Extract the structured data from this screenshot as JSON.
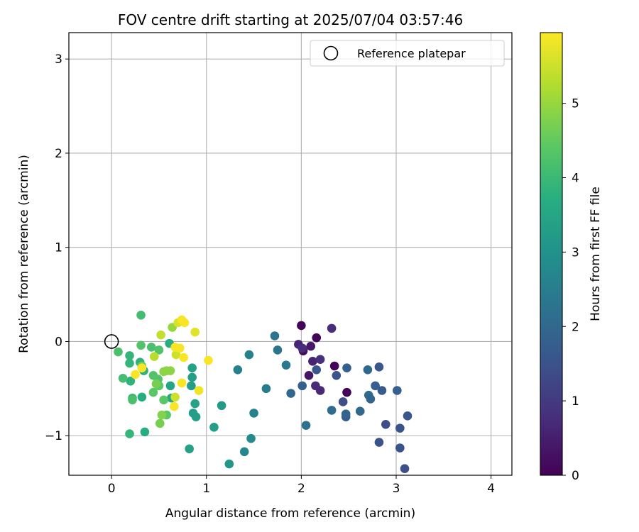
{
  "chart_data": {
    "type": "scatter",
    "title": "FOV centre drift starting at 2025/07/04 03:57:46",
    "xlabel": "Angular distance from reference (arcmin)",
    "ylabel": "Rotation from reference (arcmin)",
    "xlim": [
      -0.45,
      4.22
    ],
    "ylim": [
      -1.42,
      3.28
    ],
    "xticks": [
      0,
      1,
      2,
      3,
      4
    ],
    "yticks": [
      -1,
      0,
      1,
      2,
      3
    ],
    "grid": true,
    "legend": {
      "placement": "top-right",
      "entries": [
        "Reference platepar"
      ]
    },
    "reference_point": {
      "name": "Reference platepar",
      "x": 0,
      "y": 0
    },
    "colorbar": {
      "label": "Hours from first FF file",
      "colormap": "viridis",
      "range": [
        0,
        5.95
      ],
      "ticks": [
        0,
        1,
        2,
        3,
        4,
        5
      ]
    },
    "points": [
      {
        "x": 2.0,
        "y": 0.17,
        "c": 0.05
      },
      {
        "x": 2.16,
        "y": 0.04,
        "c": 0.05
      },
      {
        "x": 2.48,
        "y": -0.54,
        "c": 0.05
      },
      {
        "x": 2.35,
        "y": -0.26,
        "c": 0.05
      },
      {
        "x": 2.02,
        "y": -0.1,
        "c": 0.2
      },
      {
        "x": 2.08,
        "y": -0.36,
        "c": 0.35
      },
      {
        "x": 2.1,
        "y": -0.05,
        "c": 0.4
      },
      {
        "x": 1.97,
        "y": -0.03,
        "c": 0.6
      },
      {
        "x": 2.01,
        "y": -0.07,
        "c": 0.75
      },
      {
        "x": 2.12,
        "y": -0.21,
        "c": 0.6
      },
      {
        "x": 2.15,
        "y": -0.47,
        "c": 0.7
      },
      {
        "x": 2.2,
        "y": -0.52,
        "c": 0.7
      },
      {
        "x": 2.2,
        "y": -0.19,
        "c": 0.8
      },
      {
        "x": 2.32,
        "y": 0.14,
        "c": 0.75
      },
      {
        "x": 2.16,
        "y": -0.3,
        "c": 1.6
      },
      {
        "x": 2.37,
        "y": -0.36,
        "c": 1.5
      },
      {
        "x": 2.48,
        "y": -0.28,
        "c": 1.8
      },
      {
        "x": 2.44,
        "y": -0.64,
        "c": 1.4
      },
      {
        "x": 2.47,
        "y": -0.8,
        "c": 1.7
      },
      {
        "x": 2.47,
        "y": -0.77,
        "c": 1.9
      },
      {
        "x": 2.01,
        "y": -0.47,
        "c": 1.8
      },
      {
        "x": 2.05,
        "y": -0.89,
        "c": 2.2
      },
      {
        "x": 1.89,
        "y": -0.55,
        "c": 2.0
      },
      {
        "x": 2.32,
        "y": -0.73,
        "c": 2.1
      },
      {
        "x": 2.62,
        "y": -0.74,
        "c": 2.0
      },
      {
        "x": 2.7,
        "y": -0.3,
        "c": 2.0
      },
      {
        "x": 2.71,
        "y": -0.57,
        "c": 2.1
      },
      {
        "x": 2.73,
        "y": -0.61,
        "c": 1.9
      },
      {
        "x": 2.78,
        "y": -0.47,
        "c": 1.8
      },
      {
        "x": 2.82,
        "y": -0.27,
        "c": 1.6
      },
      {
        "x": 2.85,
        "y": -0.52,
        "c": 1.7
      },
      {
        "x": 2.82,
        "y": -1.07,
        "c": 1.5
      },
      {
        "x": 2.89,
        "y": -0.88,
        "c": 1.4
      },
      {
        "x": 3.01,
        "y": -0.52,
        "c": 1.8
      },
      {
        "x": 3.04,
        "y": -0.92,
        "c": 1.5
      },
      {
        "x": 3.04,
        "y": -1.13,
        "c": 1.5
      },
      {
        "x": 3.09,
        "y": -1.35,
        "c": 1.4
      },
      {
        "x": 3.12,
        "y": -0.79,
        "c": 1.6
      },
      {
        "x": 1.72,
        "y": 0.06,
        "c": 2.3
      },
      {
        "x": 1.75,
        "y": -0.09,
        "c": 2.3
      },
      {
        "x": 1.84,
        "y": -0.25,
        "c": 2.4
      },
      {
        "x": 1.63,
        "y": -0.5,
        "c": 2.5
      },
      {
        "x": 1.45,
        "y": -0.14,
        "c": 2.6
      },
      {
        "x": 1.33,
        "y": -0.3,
        "c": 2.6
      },
      {
        "x": 1.5,
        "y": -0.76,
        "c": 2.6
      },
      {
        "x": 1.47,
        "y": -1.03,
        "c": 2.8
      },
      {
        "x": 1.4,
        "y": -1.17,
        "c": 2.7
      },
      {
        "x": 1.24,
        "y": -1.3,
        "c": 3.1
      },
      {
        "x": 1.16,
        "y": -0.68,
        "c": 3.2
      },
      {
        "x": 1.08,
        "y": -0.91,
        "c": 3.3
      },
      {
        "x": 0.89,
        "y": -0.8,
        "c": 3.3
      },
      {
        "x": 0.88,
        "y": -0.66,
        "c": 3.4
      },
      {
        "x": 0.86,
        "y": -0.76,
        "c": 3.3
      },
      {
        "x": 0.82,
        "y": -1.14,
        "c": 3.4
      },
      {
        "x": 0.84,
        "y": -0.47,
        "c": 3.3
      },
      {
        "x": 0.85,
        "y": -0.38,
        "c": 3.3
      },
      {
        "x": 0.85,
        "y": -0.28,
        "c": 3.4
      },
      {
        "x": 0.62,
        "y": -0.47,
        "c": 3.5
      },
      {
        "x": 0.63,
        "y": -0.6,
        "c": 3.6
      },
      {
        "x": 0.61,
        "y": -0.02,
        "c": 3.7
      },
      {
        "x": 0.35,
        "y": -0.96,
        "c": 3.7
      },
      {
        "x": 0.32,
        "y": -0.59,
        "c": 3.7
      },
      {
        "x": 0.34,
        "y": -0.31,
        "c": 3.8
      },
      {
        "x": 0.3,
        "y": -0.22,
        "c": 3.8
      },
      {
        "x": 0.2,
        "y": -0.42,
        "c": 3.8
      },
      {
        "x": 0.19,
        "y": -0.23,
        "c": 3.9
      },
      {
        "x": 0.19,
        "y": -0.15,
        "c": 3.9
      },
      {
        "x": 0.19,
        "y": -0.98,
        "c": 3.9
      },
      {
        "x": 0.22,
        "y": -0.6,
        "c": 4.0
      },
      {
        "x": 0.22,
        "y": -0.62,
        "c": 4.2
      },
      {
        "x": 0.12,
        "y": -0.39,
        "c": 4.1
      },
      {
        "x": 0.07,
        "y": -0.11,
        "c": 4.2
      },
      {
        "x": 0.31,
        "y": 0.28,
        "c": 4.1
      },
      {
        "x": 0.31,
        "y": -0.04,
        "c": 4.3
      },
      {
        "x": 0.42,
        "y": -0.06,
        "c": 4.2
      },
      {
        "x": 0.44,
        "y": -0.36,
        "c": 4.3
      },
      {
        "x": 0.44,
        "y": -0.54,
        "c": 4.4
      },
      {
        "x": 0.49,
        "y": -0.4,
        "c": 4.3
      },
      {
        "x": 0.5,
        "y": -0.47,
        "c": 4.4
      },
      {
        "x": 0.5,
        "y": -0.09,
        "c": 4.3
      },
      {
        "x": 0.55,
        "y": -0.62,
        "c": 4.4
      },
      {
        "x": 0.58,
        "y": -0.78,
        "c": 4.4
      },
      {
        "x": 0.32,
        "y": -0.26,
        "c": 4.6
      },
      {
        "x": 0.47,
        "y": -0.45,
        "c": 4.7
      },
      {
        "x": 0.51,
        "y": -0.87,
        "c": 4.7
      },
      {
        "x": 0.53,
        "y": -0.78,
        "c": 4.8
      },
      {
        "x": 0.55,
        "y": -0.32,
        "c": 4.9
      },
      {
        "x": 0.58,
        "y": -0.31,
        "c": 4.9
      },
      {
        "x": 0.62,
        "y": -0.31,
        "c": 4.9
      },
      {
        "x": 0.64,
        "y": 0.15,
        "c": 5.0
      },
      {
        "x": 0.45,
        "y": -0.16,
        "c": 5.3
      },
      {
        "x": 0.52,
        "y": 0.07,
        "c": 5.4
      },
      {
        "x": 0.67,
        "y": -0.59,
        "c": 5.5
      },
      {
        "x": 0.68,
        "y": -0.14,
        "c": 5.5
      },
      {
        "x": 0.7,
        "y": 0.2,
        "c": 5.6
      },
      {
        "x": 0.88,
        "y": 0.1,
        "c": 5.7
      },
      {
        "x": 0.92,
        "y": -0.52,
        "c": 5.8
      },
      {
        "x": 1.02,
        "y": -0.2,
        "c": 5.9
      },
      {
        "x": 0.74,
        "y": -0.44,
        "c": 5.9
      },
      {
        "x": 0.76,
        "y": -0.17,
        "c": 5.9
      },
      {
        "x": 0.72,
        "y": -0.07,
        "c": 5.9
      },
      {
        "x": 0.74,
        "y": 0.23,
        "c": 5.9
      },
      {
        "x": 0.77,
        "y": 0.2,
        "c": 5.9
      },
      {
        "x": 0.67,
        "y": -0.06,
        "c": 5.9
      },
      {
        "x": 0.66,
        "y": -0.69,
        "c": 5.9
      },
      {
        "x": 0.25,
        "y": -0.35,
        "c": 5.9
      },
      {
        "x": 0.32,
        "y": -0.28,
        "c": 5.9
      }
    ]
  }
}
